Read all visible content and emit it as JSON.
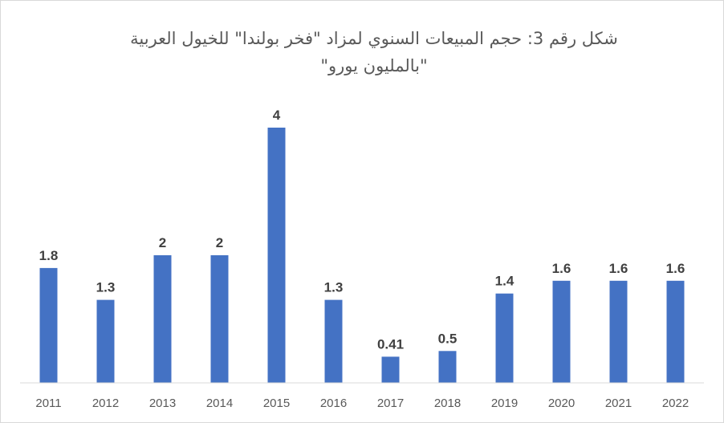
{
  "chart_data": {
    "type": "bar",
    "title_line1": "شكل رقم 3: حجم المبيعات السنوي لمزاد \"فخر بولندا\" للخيول العربية",
    "title_line2": "\"بالمليون يورو\"",
    "categories": [
      "2011",
      "2012",
      "2013",
      "2014",
      "2015",
      "2016",
      "2017",
      "2018",
      "2019",
      "2020",
      "2021",
      "2022"
    ],
    "values": [
      1.8,
      1.3,
      2,
      2,
      4,
      1.3,
      0.41,
      0.5,
      1.4,
      1.6,
      1.6,
      1.6
    ],
    "value_labels": [
      "1.8",
      "1.3",
      "2",
      "2",
      "4",
      "1.3",
      "0.41",
      "0.5",
      "1.4",
      "1.6",
      "1.6",
      "1.6"
    ],
    "ylim": [
      0,
      4
    ],
    "grid": false,
    "legend": "none",
    "bar_color": "#4472c4"
  }
}
